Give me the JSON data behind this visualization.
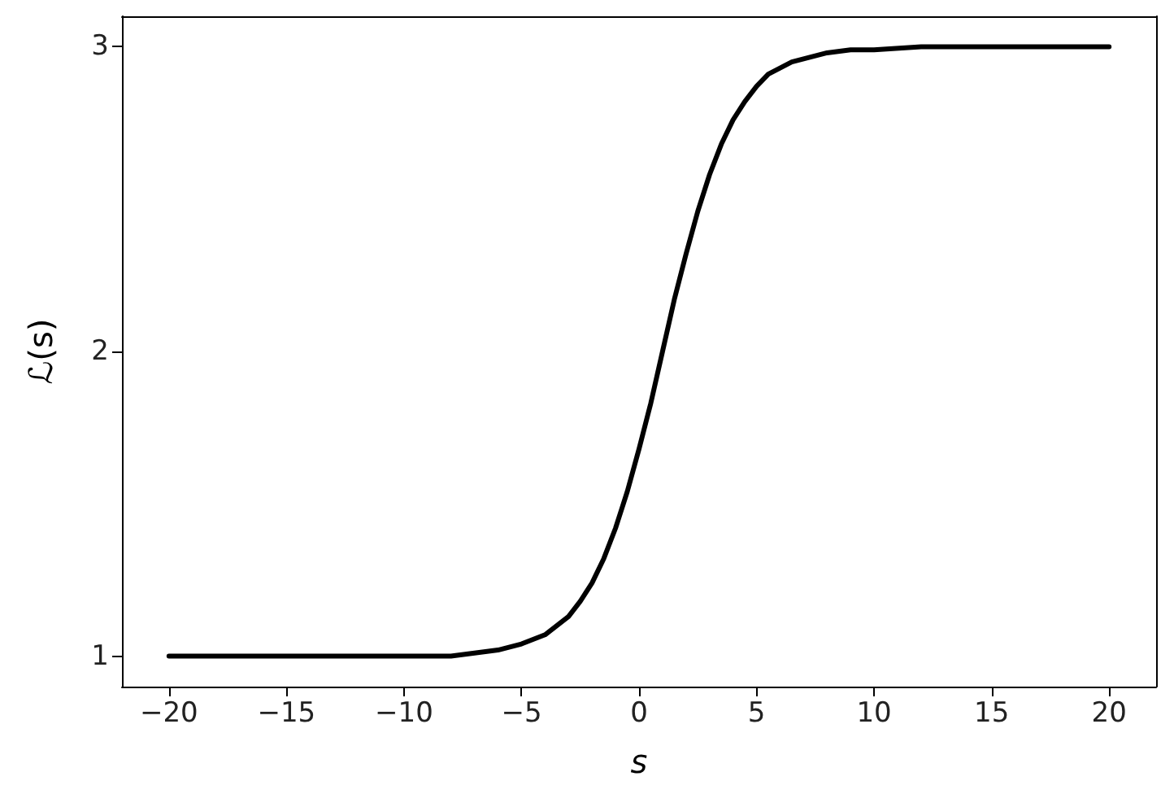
{
  "chart_data": {
    "type": "line",
    "xlabel": "s",
    "ylabel": "ℒ(s)",
    "x": [
      -20,
      -15,
      -10,
      -8,
      -7,
      -6,
      -5,
      -4,
      -3.5,
      -3,
      -2.5,
      -2,
      -1.5,
      -1,
      -0.5,
      0,
      0.5,
      1,
      1.5,
      2,
      2.5,
      3,
      3.5,
      4,
      4.5,
      5,
      5.5,
      6,
      6.5,
      7,
      8,
      9,
      10,
      12,
      15,
      20
    ],
    "series": [
      {
        "color": "#000000",
        "values": [
          1.0,
          1.0,
          1.0,
          1.0,
          1.01,
          1.02,
          1.04,
          1.07,
          1.1,
          1.13,
          1.18,
          1.24,
          1.32,
          1.42,
          1.54,
          1.68,
          1.83,
          2.0,
          2.17,
          2.32,
          2.46,
          2.58,
          2.68,
          2.76,
          2.82,
          2.87,
          2.91,
          2.93,
          2.95,
          2.96,
          2.98,
          2.99,
          2.99,
          3.0,
          3.0,
          3.0
        ]
      }
    ],
    "xlim": [
      -22,
      22
    ],
    "xticks": [
      -20,
      -15,
      -10,
      -5,
      0,
      5,
      10,
      15,
      20
    ],
    "ylim": [
      0.9,
      3.1
    ],
    "yticks": [
      1,
      2,
      3
    ],
    "marker": "none",
    "line_style": "solid"
  }
}
